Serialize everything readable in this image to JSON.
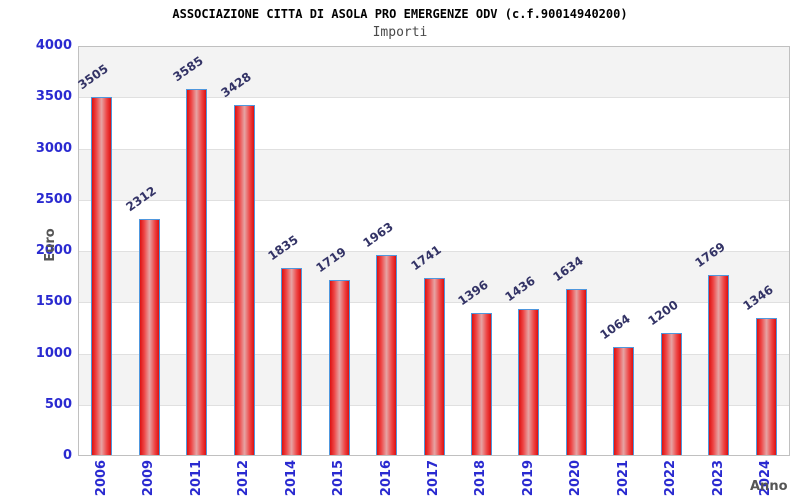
{
  "header": {
    "title": "ASSOCIAZIONE CITTA DI ASOLA PRO EMERGENZE ODV (c.f.90014940200)",
    "subtitle": "Importi"
  },
  "chart_data": {
    "type": "bar",
    "title": "ASSOCIAZIONE CITTA DI ASOLA PRO EMERGENZE ODV (c.f.90014940200)",
    "subtitle": "Importi",
    "xlabel": "Anno",
    "ylabel": "Euro",
    "categories": [
      "2006",
      "2009",
      "2011",
      "2012",
      "2014",
      "2015",
      "2016",
      "2017",
      "2018",
      "2019",
      "2020",
      "2021",
      "2022",
      "2023",
      "2024"
    ],
    "values": [
      3505,
      2312,
      3585,
      3428,
      1835,
      1719,
      1963,
      1741,
      1396,
      1436,
      1634,
      1064,
      1200,
      1769,
      1346
    ],
    "ylim": [
      0,
      4000
    ],
    "y_tick_step": 500,
    "y_ticks": [
      "4000",
      "3500",
      "3000",
      "2500",
      "2000",
      "1500",
      "1000",
      "500",
      "0"
    ],
    "grid": true,
    "legend": "none",
    "colors": {
      "bar_edge": "#dd1111",
      "bar_mid_light": "#e6a4a4",
      "bar_border": "#4f97dd",
      "tick_label": "#2a2ad0",
      "value_label": "#333366",
      "band_gray": "#f3f3f3",
      "band_white": "#ffffff",
      "gridline": "#e0e0e0",
      "plot_border": "#c0c0c0",
      "axis_title": "#555555",
      "title": "#000000",
      "subtitle": "#4a4a4a"
    }
  }
}
